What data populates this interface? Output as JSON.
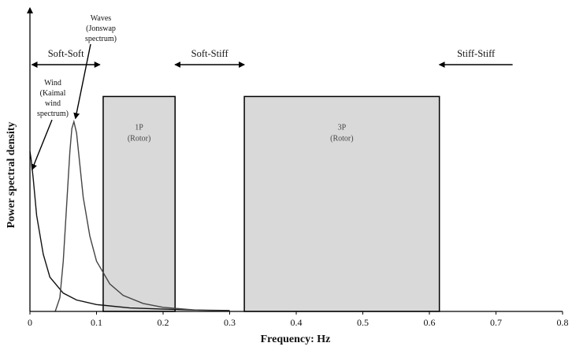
{
  "chart_data": {
    "type": "line",
    "title": "",
    "xlabel": "Frequency: Hz",
    "ylabel": "Power spectral density",
    "xlim": [
      0,
      0.8
    ],
    "ylim": [
      0,
      1
    ],
    "x_ticks": [
      "0",
      "0.1",
      "0.2",
      "0.3",
      "0.4",
      "0.5",
      "0.6",
      "0.7",
      "0.8"
    ],
    "y_ticks": [],
    "grid": false,
    "bands": [
      {
        "name": "1P",
        "sub": "(Rotor)",
        "x_start": 0.11,
        "x_end": 0.218,
        "height": 0.94,
        "fill": "#d9d9d9"
      },
      {
        "name": "3P",
        "sub": "(Rotor)",
        "x_start": 0.322,
        "x_end": 0.615,
        "height": 0.94,
        "fill": "#d9d9d9"
      }
    ],
    "regions": [
      {
        "label": "Soft-Soft",
        "x_start": 0.003,
        "x_end": 0.105,
        "arrow": "both"
      },
      {
        "label": "Soft-Stiff",
        "x_start": 0.218,
        "x_end": 0.322,
        "arrow": "both"
      },
      {
        "label": "Stiff-Stiff",
        "x_start": 0.615,
        "x_end": 0.725,
        "arrow": "left"
      }
    ],
    "series": [
      {
        "name": "Wind (Kaimal wind spectrum)",
        "label_lines": [
          "Wind",
          "(Kaimal",
          "wind",
          "spectrum)"
        ],
        "x": [
          0,
          0.002,
          0.005,
          0.01,
          0.02,
          0.03,
          0.05,
          0.07,
          0.1,
          0.15,
          0.2,
          0.25,
          0.3
        ],
        "y": [
          0.7,
          0.66,
          0.58,
          0.42,
          0.25,
          0.15,
          0.08,
          0.05,
          0.03,
          0.015,
          0.01,
          0.006,
          0.004
        ]
      },
      {
        "name": "Waves (Jonswap spectrum)",
        "label_lines": [
          "Waves",
          "(Jonswap",
          "spectrum)"
        ],
        "x": [
          0.038,
          0.045,
          0.05,
          0.055,
          0.06,
          0.063,
          0.066,
          0.07,
          0.075,
          0.08,
          0.09,
          0.1,
          0.12,
          0.14,
          0.17,
          0.2,
          0.25,
          0.3
        ],
        "y": [
          0,
          0.06,
          0.22,
          0.46,
          0.7,
          0.8,
          0.83,
          0.78,
          0.64,
          0.5,
          0.33,
          0.22,
          0.12,
          0.07,
          0.035,
          0.018,
          0.006,
          0.002
        ]
      }
    ]
  }
}
